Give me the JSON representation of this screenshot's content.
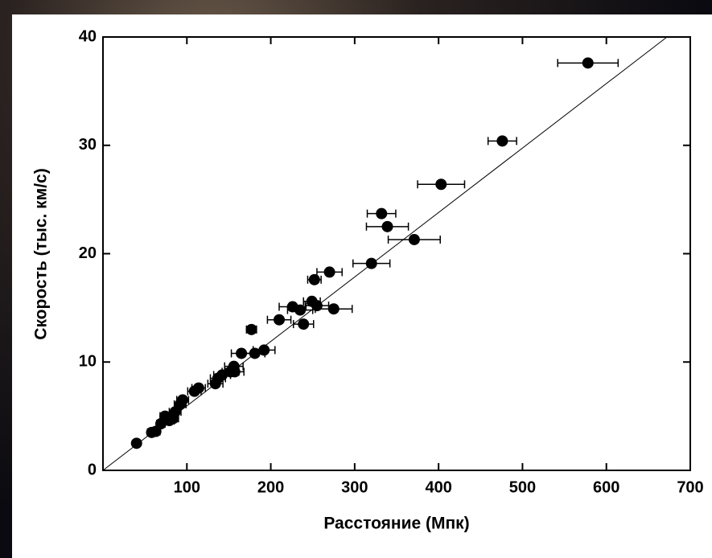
{
  "chart_data": {
    "type": "scatter",
    "x_label": "Расстояние (Мпк)",
    "y_label": "Скорость (тыс. км/с)",
    "x": [
      40,
      58,
      63,
      69,
      74,
      79,
      84,
      86,
      92,
      95,
      109,
      114,
      134,
      137,
      142,
      152,
      156,
      157,
      165,
      181,
      192,
      177,
      210,
      239,
      226,
      235,
      249,
      255,
      275,
      252,
      270,
      320,
      371,
      339,
      332,
      403,
      476,
      578
    ],
    "values": [
      2.5,
      3.5,
      3.6,
      4.3,
      5.0,
      4.6,
      4.8,
      5.4,
      6.1,
      6.5,
      7.3,
      7.6,
      8.0,
      8.5,
      8.8,
      9.1,
      9.6,
      9.1,
      10.8,
      10.8,
      11.1,
      13.0,
      13.9,
      13.5,
      15.1,
      14.8,
      15.6,
      15.2,
      14.9,
      17.6,
      18.3,
      19.1,
      21.3,
      22.5,
      23.7,
      26.4,
      30.4,
      37.6
    ],
    "xerr": [
      3,
      5,
      5,
      5,
      6,
      6,
      6,
      7,
      7,
      7,
      8,
      8,
      9,
      9,
      10,
      10,
      11,
      11,
      12,
      12,
      13,
      6,
      14,
      12,
      16,
      15,
      10,
      14,
      22,
      8,
      15,
      22,
      31,
      25,
      17,
      28,
      17,
      36
    ],
    "color": "#000000",
    "fit_slope": 0.0595,
    "xlim": [
      0,
      700
    ],
    "xticks": [
      100,
      200,
      300,
      400,
      500,
      600,
      700
    ],
    "ylim": [
      0,
      40
    ],
    "yticks": [
      0,
      10,
      20,
      30,
      40
    ]
  }
}
